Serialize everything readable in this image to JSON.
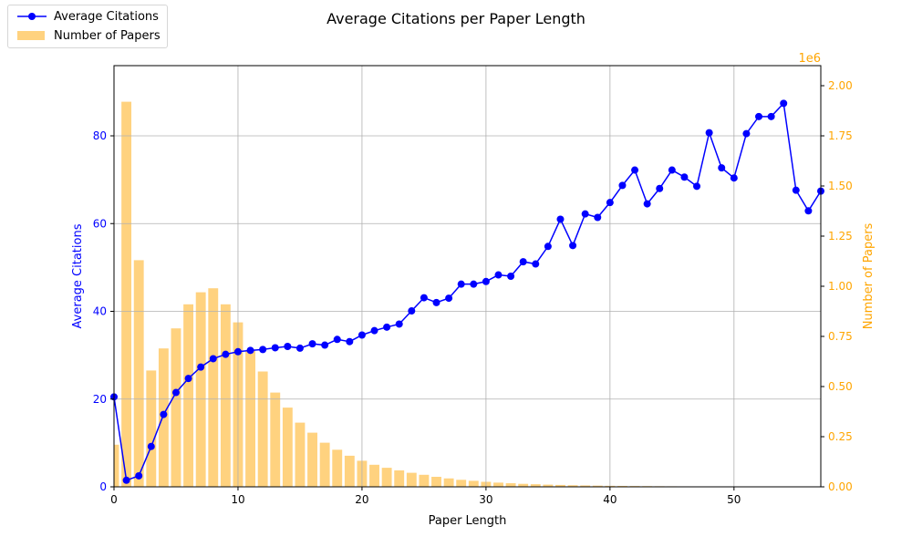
{
  "chart_data": {
    "type": "bar+line",
    "title": "Average Citations per Paper Length",
    "xlabel": "Paper Length",
    "ylabel_left": "Average Citations",
    "ylabel_right": "Number of Papers",
    "right_axis_multiplier": "1e6",
    "xlim": [
      0,
      57
    ],
    "ylim_left": [
      0,
      96
    ],
    "ylim_right": [
      0,
      2100000
    ],
    "x_ticks": [
      0,
      10,
      20,
      30,
      40,
      50
    ],
    "y_left_ticks": [
      0,
      20,
      40,
      60,
      80
    ],
    "y_right_ticks": [
      "0.00",
      "0.25",
      "0.50",
      "0.75",
      "1.00",
      "1.25",
      "1.50",
      "1.75",
      "2.00"
    ],
    "grid": true,
    "legend_position": "top-left",
    "colors": {
      "line": "#0000ff",
      "bars": "#ffa500",
      "left_axis": "#0000ff",
      "right_axis": "#ffa500"
    },
    "series": [
      {
        "name": "Average Citations",
        "kind": "line",
        "axis": "left",
        "x": [
          0,
          1,
          2,
          3,
          4,
          5,
          6,
          7,
          8,
          9,
          10,
          11,
          12,
          13,
          14,
          15,
          16,
          17,
          18,
          19,
          20,
          21,
          22,
          23,
          24,
          25,
          26,
          27,
          28,
          29,
          30,
          31,
          32,
          33,
          34,
          35,
          36,
          37,
          38,
          39,
          40,
          41,
          42,
          43,
          44,
          45,
          46,
          47,
          48,
          49,
          50,
          51,
          52,
          53,
          54,
          55,
          56,
          57
        ],
        "values": [
          20.5,
          1.5,
          2.5,
          9.2,
          16.5,
          21.5,
          24.7,
          27.3,
          29.2,
          30.2,
          30.8,
          31.1,
          31.3,
          31.7,
          32.0,
          31.6,
          32.6,
          32.3,
          33.6,
          33.1,
          34.6,
          35.6,
          36.4,
          37.1,
          40.1,
          43.1,
          42.0,
          43.0,
          46.2,
          46.2,
          46.8,
          48.3,
          48.0,
          51.3,
          50.8,
          54.8,
          61.0,
          55.0,
          62.2,
          61.4,
          64.8,
          68.7,
          72.2,
          64.5,
          68.0,
          72.2,
          70.6,
          68.5,
          80.7,
          72.7,
          70.4,
          80.5,
          84.4,
          84.4,
          87.4,
          67.6,
          62.9,
          67.4
        ]
      },
      {
        "name": "Number of Papers",
        "kind": "bar",
        "axis": "right",
        "x": [
          0,
          1,
          2,
          3,
          4,
          5,
          6,
          7,
          8,
          9,
          10,
          11,
          12,
          13,
          14,
          15,
          16,
          17,
          18,
          19,
          20,
          21,
          22,
          23,
          24,
          25,
          26,
          27,
          28,
          29,
          30,
          31,
          32,
          33,
          34,
          35,
          36,
          37,
          38,
          39,
          40,
          41,
          42,
          43,
          44,
          45,
          46,
          47,
          48,
          49,
          50,
          51,
          52,
          53,
          54,
          55,
          56,
          57
        ],
        "values": [
          210000,
          1920000,
          1130000,
          580000,
          690000,
          790000,
          910000,
          970000,
          990000,
          910000,
          820000,
          680000,
          575000,
          470000,
          395000,
          320000,
          270000,
          220000,
          185000,
          155000,
          130000,
          110000,
          95000,
          82000,
          70000,
          60000,
          50000,
          42000,
          35000,
          30000,
          25000,
          21000,
          18000,
          15000,
          13000,
          11000,
          9500,
          8000,
          7000,
          6000,
          5000,
          4500,
          4000,
          3500,
          3000,
          2600,
          2300,
          2000,
          1800,
          1600,
          1400,
          1200,
          1100,
          1000,
          900,
          800,
          700,
          600
        ]
      }
    ]
  }
}
